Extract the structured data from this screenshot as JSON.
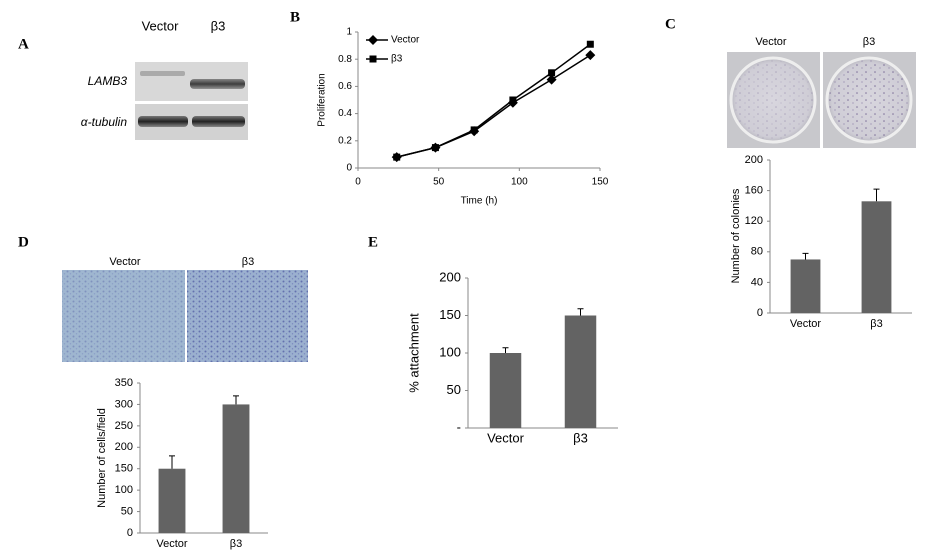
{
  "blot": {
    "panel": "A",
    "lanes": [
      "Vector",
      "β3"
    ],
    "rows": [
      "LAMB3",
      "α-tubulin"
    ]
  },
  "colony_images": {
    "labels": [
      "Vector",
      "β3"
    ]
  },
  "invasion_images": {
    "labels": [
      "Vector",
      "β3"
    ]
  },
  "chart_data": [
    {
      "type": "line",
      "panel": "B",
      "x_label": "Time (h)",
      "y_label": "Proliferation",
      "x": [
        24,
        48,
        72,
        96,
        120,
        144
      ],
      "series": [
        {
          "name": "Vector",
          "color": "#000000",
          "marker": "diamond",
          "values": [
            0.08,
            0.15,
            0.27,
            0.48,
            0.65,
            0.83
          ]
        },
        {
          "name": "β3",
          "color": "#000000",
          "marker": "square",
          "values": [
            0.08,
            0.15,
            0.28,
            0.5,
            0.7,
            0.91
          ]
        }
      ],
      "xlim": [
        0,
        150
      ],
      "xticks": [
        0,
        50,
        100,
        150
      ],
      "ylim": [
        0,
        1
      ],
      "yticks": [
        0,
        0.2,
        0.4,
        0.6,
        0.8,
        1
      ],
      "legend": "upper-left"
    },
    {
      "type": "bar",
      "panel": "C",
      "y_label": "Number of colonies",
      "categories": [
        "Vector",
        "β3"
      ],
      "values": [
        70,
        146
      ],
      "errors": [
        8,
        16
      ],
      "color": "#636363",
      "ylim": [
        0,
        200
      ],
      "yticks": [
        0,
        40,
        80,
        120,
        160,
        200
      ]
    },
    {
      "type": "bar",
      "panel": "D",
      "y_label": "Number of cells/field",
      "categories": [
        "Vector",
        "β3"
      ],
      "values": [
        150,
        300
      ],
      "errors": [
        30,
        20
      ],
      "color": "#636363",
      "ylim": [
        0,
        350
      ],
      "yticks": [
        0,
        50,
        100,
        150,
        200,
        250,
        300,
        350
      ]
    },
    {
      "type": "bar",
      "panel": "E",
      "y_label": "% attachment",
      "categories": [
        "Vector",
        "β3"
      ],
      "values": [
        100,
        150
      ],
      "errors": [
        7,
        9
      ],
      "color": "#636363",
      "ylim": [
        0,
        200
      ],
      "yticks": [
        {
          "value": 0,
          "label": "-"
        },
        50,
        100,
        150,
        200
      ]
    }
  ]
}
